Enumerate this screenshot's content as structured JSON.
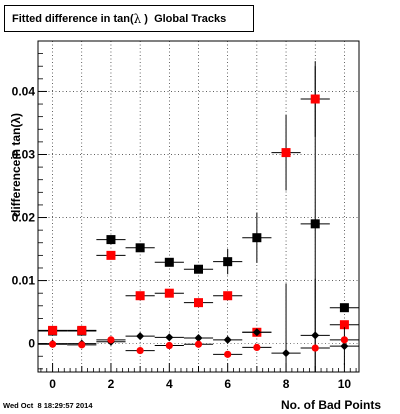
{
  "title": {
    "prefix": "Fitted difference in tan(",
    "symbol": "λ",
    "suffix": " )  Global Tracks"
  },
  "timestamp": "Wed Oct  8 18:29:57 2014",
  "chart_data": {
    "type": "scatter",
    "title": "Fitted difference in tan( λ )  Global Tracks",
    "xlabel": "No. of Bad Points",
    "ylabel": "differencein tan(λ)",
    "xlim": [
      -0.5,
      10.5
    ],
    "ylim": [
      -0.0045,
      0.048
    ],
    "x_ticks": [
      0,
      2,
      4,
      6,
      8,
      10
    ],
    "x_tick_labels": [
      "0",
      "2",
      "4",
      "6",
      "8",
      "10"
    ],
    "y_ticks": [
      0,
      0.01,
      0.02,
      0.03,
      0.04
    ],
    "y_tick_labels": [
      "0",
      "0.01",
      "0.02",
      "0.03",
      "0.04"
    ],
    "grid": true,
    "series": [
      {
        "color": "#000000",
        "marker": "square",
        "points": [
          {
            "x": 0,
            "y": 0.002,
            "yerr": 0.0
          },
          {
            "x": 1,
            "y": 0.002,
            "yerr": 0.0
          },
          {
            "x": 2,
            "y": 0.0165,
            "yerr": 0.0
          },
          {
            "x": 3,
            "y": 0.0152,
            "yerr": 0.0
          },
          {
            "x": 4,
            "y": 0.0129,
            "yerr": 0.0
          },
          {
            "x": 5,
            "y": 0.0118,
            "yerr": 0.0
          },
          {
            "x": 6,
            "y": 0.013,
            "yerr": 0.002
          },
          {
            "x": 7,
            "y": 0.0168,
            "yerr": 0.004
          },
          {
            "x": 9,
            "y": 0.019,
            "yerr": 0.025
          },
          {
            "x": 10,
            "y": 0.0057,
            "yerr": 0.0
          }
        ]
      },
      {
        "color": "#ff0000",
        "marker": "square",
        "points": [
          {
            "x": 0,
            "y": 0.0021,
            "yerr": 0.0
          },
          {
            "x": 1,
            "y": 0.0021,
            "yerr": 0.0
          },
          {
            "x": 2,
            "y": 0.014,
            "yerr": 0.0
          },
          {
            "x": 3,
            "y": 0.0076,
            "yerr": 0.0
          },
          {
            "x": 4,
            "y": 0.008,
            "yerr": 0.0
          },
          {
            "x": 5,
            "y": 0.0065,
            "yerr": 0.0
          },
          {
            "x": 6,
            "y": 0.0076,
            "yerr": 0.0
          },
          {
            "x": 7,
            "y": 0.0018,
            "yerr": 0.0
          },
          {
            "x": 8,
            "y": 0.0303,
            "yerr": 0.006
          },
          {
            "x": 9,
            "y": 0.0388,
            "yerr": 0.006
          },
          {
            "x": 10,
            "y": 0.003,
            "yerr": 0.0
          }
        ]
      },
      {
        "color": "#000000",
        "marker": "diamond",
        "points": [
          {
            "x": 0,
            "y": 0.0,
            "yerr": 0.0
          },
          {
            "x": 1,
            "y": 0.0,
            "yerr": 0.0
          },
          {
            "x": 2,
            "y": 0.0003,
            "yerr": 0.0
          },
          {
            "x": 3,
            "y": 0.0012,
            "yerr": 0.0
          },
          {
            "x": 4,
            "y": 0.001,
            "yerr": 0.0
          },
          {
            "x": 5,
            "y": 0.0009,
            "yerr": 0.0
          },
          {
            "x": 6,
            "y": 0.0006,
            "yerr": 0.0
          },
          {
            "x": 7,
            "y": 0.0018,
            "yerr": 0.0
          },
          {
            "x": 8,
            "y": -0.0015,
            "yerr": 0.011
          },
          {
            "x": 9,
            "y": 0.0013,
            "yerr": 0.009
          },
          {
            "x": 10,
            "y": -0.0004,
            "yerr": 0.003
          }
        ]
      },
      {
        "color": "#ff0000",
        "marker": "circle",
        "points": [
          {
            "x": 0,
            "y": -0.0001,
            "yerr": 0.0
          },
          {
            "x": 1,
            "y": -0.0002,
            "yerr": 0.0
          },
          {
            "x": 2,
            "y": 0.0006,
            "yerr": 0.0
          },
          {
            "x": 3,
            "y": -0.0011,
            "yerr": 0.0
          },
          {
            "x": 4,
            "y": -0.0003,
            "yerr": 0.0
          },
          {
            "x": 5,
            "y": -0.0001,
            "yerr": 0.0
          },
          {
            "x": 6,
            "y": -0.0017,
            "yerr": 0.0
          },
          {
            "x": 7,
            "y": -0.0006,
            "yerr": 0.0
          },
          {
            "x": 9,
            "y": -0.0007,
            "yerr": 0.0
          },
          {
            "x": 10,
            "y": 0.0006,
            "yerr": 0.0
          }
        ]
      }
    ]
  }
}
